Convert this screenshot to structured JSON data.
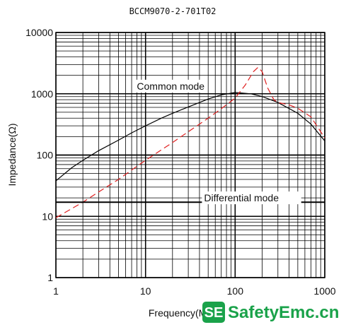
{
  "chart_data": {
    "type": "line",
    "title": "BCCM9070-2-701T02",
    "xlabel": "Frequency(MHz)",
    "ylabel": "Impedance(Ω)",
    "xscale": "log",
    "yscale": "log",
    "xlim": [
      1,
      1000
    ],
    "ylim": [
      1,
      10000
    ],
    "x_ticks": [
      "1",
      "10",
      "100",
      "1000"
    ],
    "y_ticks": [
      "1",
      "10",
      "100",
      "1000",
      "10000"
    ],
    "grid": true,
    "series": [
      {
        "name": "Common mode",
        "color": "#000000",
        "style": "solid",
        "x": [
          1,
          1.5,
          2,
          3,
          5,
          7,
          10,
          15,
          20,
          30,
          50,
          70,
          100,
          150,
          200,
          300,
          500,
          700,
          1000
        ],
        "y": [
          38,
          62,
          82,
          118,
          175,
          230,
          300,
          400,
          480,
          610,
          820,
          960,
          1050,
          1000,
          900,
          720,
          480,
          320,
          170
        ]
      },
      {
        "name": "Differential mode",
        "color": "#e02020",
        "style": "dashed",
        "x": [
          1,
          2,
          3,
          5,
          7,
          10,
          20,
          30,
          50,
          70,
          100,
          130,
          160,
          180,
          200,
          230,
          270,
          300,
          400,
          500,
          700,
          1000
        ],
        "y": [
          9.5,
          17,
          25,
          40,
          57,
          82,
          160,
          240,
          400,
          570,
          850,
          1400,
          2300,
          2700,
          2300,
          1250,
          800,
          720,
          660,
          580,
          420,
          190
        ]
      }
    ],
    "annotations": [
      {
        "text": "Common mode",
        "x": 8,
        "y": 1200
      },
      {
        "text": "Differential mode",
        "x": 45,
        "y": 18
      }
    ],
    "horizontal_line": {
      "y": 17
    }
  },
  "watermark": {
    "badge": "SE",
    "text": "SafetyEmc.cn",
    "color": "#1aa24a"
  }
}
